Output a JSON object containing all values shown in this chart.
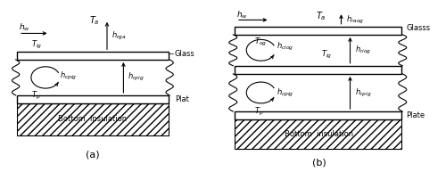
{
  "fig_width": 5.0,
  "fig_height": 1.93,
  "dpi": 100,
  "bg_color": "#ffffff",
  "panel_a": {
    "label": "(a)",
    "glass_label": "Glass",
    "plate_label": "Plat",
    "bottom_label": "Bottom  insulation",
    "ta_label": "$T_a$",
    "hw_label": "$h_w$",
    "hrga_label": "$h_{rga}$",
    "tig_label": "$T_{ig}$",
    "hcpig_label": "$h_{cpig}$",
    "hrpig_label": "$h_{rpig}$",
    "tp_label": "$T_p$"
  },
  "panel_b": {
    "label": "(b)",
    "glass_label": "Glasss",
    "plate_label": "Plate",
    "bottom_label": "Bottom  insulation",
    "ta_label": "$T_a$",
    "hw_label": "$h_w$",
    "hraog_label": "$h_{raog}$",
    "tog_label": "$T_{og}$",
    "hciog_label": "$h_{ciog}$",
    "tig_label": "$T_{ig}$",
    "hriog_label": "$h_{riog}$",
    "hcpig_label": "$h_{cpig}$",
    "hrpig_label": "$h_{rpig}$",
    "tp_label": "$T_p$"
  }
}
